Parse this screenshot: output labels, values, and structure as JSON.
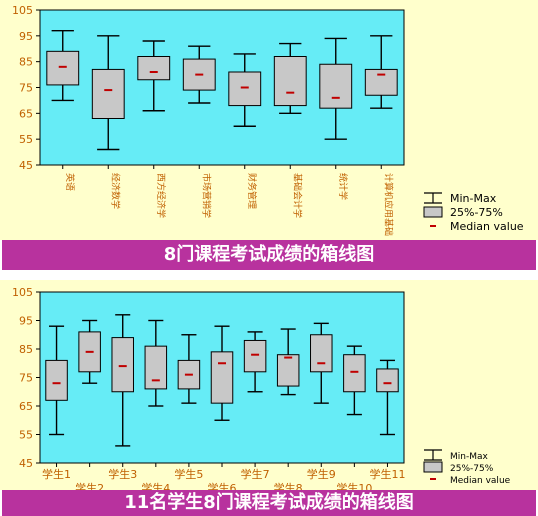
{
  "colors": {
    "panel_bg": "#ffffcc",
    "plot_bg": "#66ecf6",
    "box_fill": "#c8c8c8",
    "median": "#c00000",
    "tick_label": "#c06000",
    "banner_bg": "#b8329e",
    "banner_text": "#ffffff"
  },
  "chart_data": [
    {
      "type": "boxplot",
      "title": "8门课程考试成绩的箱线图",
      "ylim": [
        45,
        105
      ],
      "yticks": [
        45,
        55,
        65,
        75,
        85,
        95,
        105
      ],
      "category_label_orientation": "vertical",
      "categories": [
        "英语",
        "经济数学",
        "西方经济学",
        "市场营销学",
        "财务管理",
        "基础会计学",
        "统计学",
        "计算机应用基础"
      ],
      "boxes": [
        {
          "min": 70,
          "q1": 76,
          "median": 83,
          "q3": 89,
          "max": 97
        },
        {
          "min": 51,
          "q1": 63,
          "median": 74,
          "q3": 82,
          "max": 95
        },
        {
          "min": 66,
          "q1": 78,
          "median": 81,
          "q3": 87,
          "max": 93
        },
        {
          "min": 69,
          "q1": 74,
          "median": 80,
          "q3": 86,
          "max": 91
        },
        {
          "min": 60,
          "q1": 68,
          "median": 75,
          "q3": 81,
          "max": 88
        },
        {
          "min": 65,
          "q1": 68,
          "median": 73,
          "q3": 87,
          "max": 92
        },
        {
          "min": 55,
          "q1": 67,
          "median": 71,
          "q3": 84,
          "max": 94
        },
        {
          "min": 67,
          "q1": 72,
          "median": 80,
          "q3": 82,
          "max": 95
        }
      ],
      "legend": [
        "Min-Max",
        "25%-75%",
        "Median value"
      ],
      "legend_position": "right-bottom"
    },
    {
      "type": "boxplot",
      "title": "11名学生8门课程考试成绩的箱线图",
      "ylim": [
        45,
        105
      ],
      "yticks": [
        45,
        55,
        65,
        75,
        85,
        95,
        105
      ],
      "category_label_orientation": "staggered",
      "categories": [
        "学生1",
        "学生2",
        "学生3",
        "学生4",
        "学生5",
        "学生6",
        "学生7",
        "学生8",
        "学生9",
        "学生10",
        "学生11"
      ],
      "boxes": [
        {
          "min": 55,
          "q1": 67,
          "median": 73,
          "q3": 81,
          "max": 93
        },
        {
          "min": 73,
          "q1": 77,
          "median": 84,
          "q3": 91,
          "max": 95
        },
        {
          "min": 51,
          "q1": 70,
          "median": 79,
          "q3": 89,
          "max": 97
        },
        {
          "min": 65,
          "q1": 71,
          "median": 74,
          "q3": 86,
          "max": 95
        },
        {
          "min": 66,
          "q1": 71,
          "median": 76,
          "q3": 81,
          "max": 90
        },
        {
          "min": 60,
          "q1": 66,
          "median": 80,
          "q3": 84,
          "max": 93
        },
        {
          "min": 70,
          "q1": 77,
          "median": 83,
          "q3": 88,
          "max": 91
        },
        {
          "min": 69,
          "q1": 72,
          "median": 82,
          "q3": 83,
          "max": 92
        },
        {
          "min": 66,
          "q1": 77,
          "median": 80,
          "q3": 90,
          "max": 94
        },
        {
          "min": 62,
          "q1": 70,
          "median": 77,
          "q3": 83,
          "max": 86
        },
        {
          "min": 55,
          "q1": 70,
          "median": 73,
          "q3": 78,
          "max": 81
        }
      ],
      "legend": [
        "Min-Max",
        "25%-75%",
        "Median value"
      ],
      "legend_position": "right-bottom"
    }
  ]
}
